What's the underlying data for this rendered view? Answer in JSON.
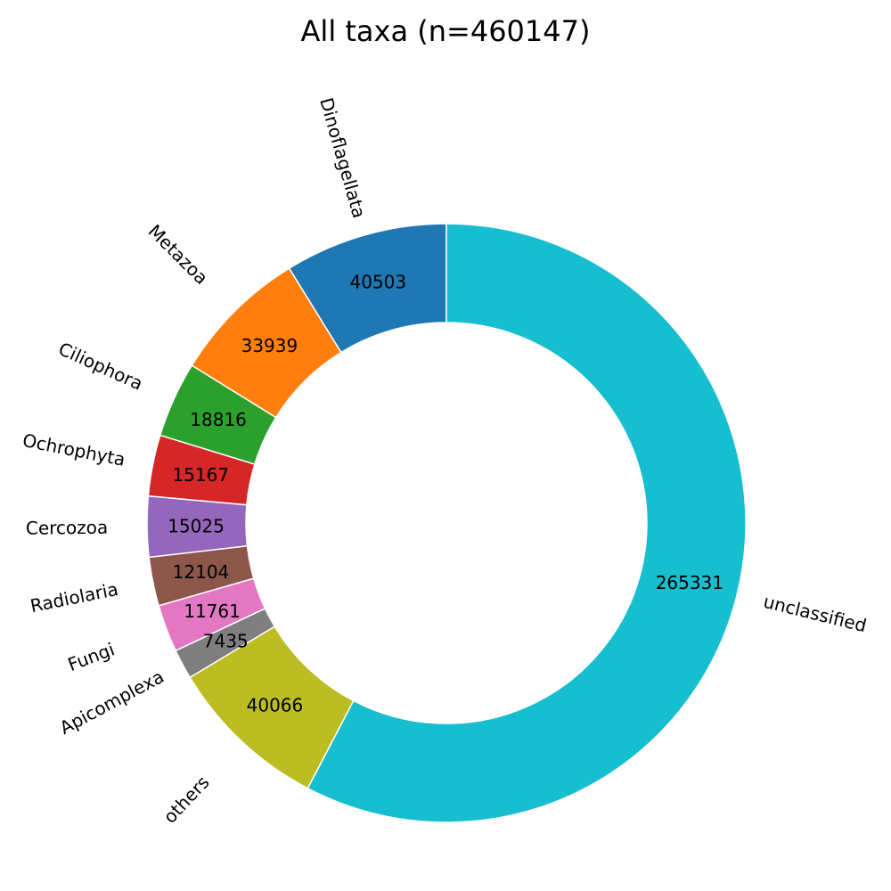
{
  "chart_data": {
    "type": "pie",
    "style": "donut",
    "title": "All taxa (n=460147)",
    "start_angle_deg": 90,
    "direction": "counterclockwise",
    "slices": [
      {
        "label": "Dinoflagellata",
        "value": 40503,
        "display": "40503",
        "color": "#1f77b4"
      },
      {
        "label": "Metazoa",
        "value": 33939,
        "display": "33939",
        "color": "#ff7f0e"
      },
      {
        "label": "Ciliophora",
        "value": 18816,
        "display": "18816",
        "color": "#2ca02c"
      },
      {
        "label": "Ochrophyta",
        "value": 15167,
        "display": "15167",
        "color": "#d62728"
      },
      {
        "label": "Cercozoa",
        "value": 15025,
        "display": "15025",
        "color": "#9467bd"
      },
      {
        "label": "Radiolaria",
        "value": 12104,
        "display": "12104",
        "color": "#8c564b"
      },
      {
        "label": "Fungi",
        "value": 11761,
        "display": "11761",
        "color": "#e377c2"
      },
      {
        "label": "Apicomplexa",
        "value": 7435,
        "display": "7435",
        "color": "#7f7f7f"
      },
      {
        "label": "others",
        "value": 40066,
        "display": "40066",
        "color": "#bcbd22"
      },
      {
        "label": "unclassified",
        "value": 265331,
        "display": "265331",
        "color": "#17becf"
      }
    ]
  }
}
